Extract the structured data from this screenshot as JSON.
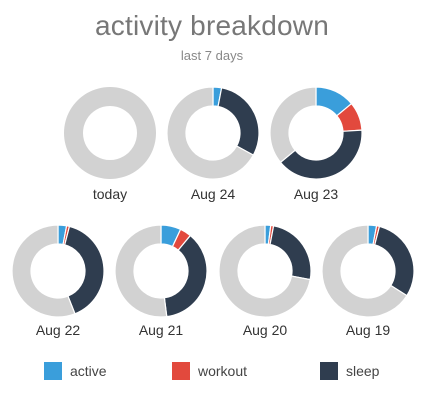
{
  "header": {
    "title": "activity breakdown",
    "subtitle": "last 7 days"
  },
  "colors": {
    "active": "#3a9edb",
    "workout": "#e2493d",
    "sleep": "#2f3d4f",
    "idle": "#d2d2d2"
  },
  "chart_data": {
    "type": "pie",
    "variant": "donut-grid",
    "series_names": [
      "active",
      "workout",
      "sleep"
    ],
    "days": [
      {
        "label": "today",
        "active": 0.0,
        "workout": 0.0,
        "sleep": 0.0
      },
      {
        "label": "Aug 24",
        "active": 0.03,
        "workout": 0.0,
        "sleep": 0.3
      },
      {
        "label": "Aug 23",
        "active": 0.14,
        "workout": 0.1,
        "sleep": 0.4
      },
      {
        "label": "Aug 22",
        "active": 0.03,
        "workout": 0.01,
        "sleep": 0.4
      },
      {
        "label": "Aug 21",
        "active": 0.07,
        "workout": 0.04,
        "sleep": 0.37
      },
      {
        "label": "Aug 20",
        "active": 0.02,
        "workout": 0.01,
        "sleep": 0.25
      },
      {
        "label": "Aug 19",
        "active": 0.03,
        "workout": 0.01,
        "sleep": 0.3
      }
    ]
  },
  "legend": [
    {
      "key": "active",
      "label": "active"
    },
    {
      "key": "workout",
      "label": "workout"
    },
    {
      "key": "sleep",
      "label": "sleep"
    }
  ]
}
